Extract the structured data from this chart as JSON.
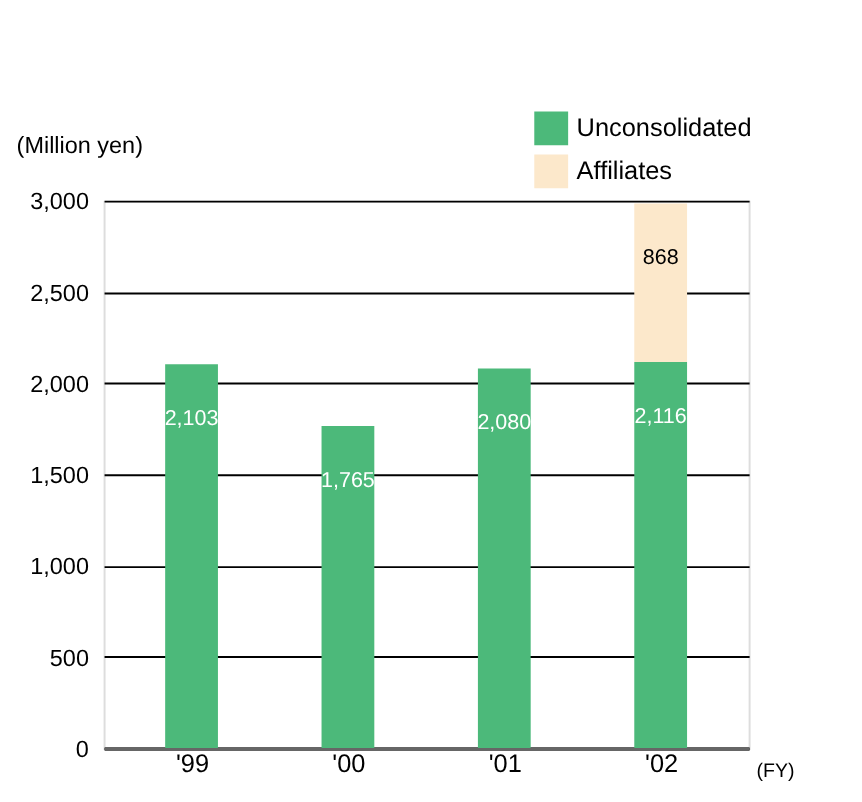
{
  "chart_data": {
    "type": "bar",
    "stacked": true,
    "categories": [
      "'99",
      "'00",
      "'01",
      "'02"
    ],
    "series": [
      {
        "name": "Unconsolidated",
        "color": "#4cb97a",
        "values": [
          2103,
          1765,
          2080,
          2116
        ],
        "value_labels": [
          "2,103",
          "1,765",
          "2,080",
          "2,116"
        ]
      },
      {
        "name": "Affiliates",
        "color": "#fce8cb",
        "values": [
          null,
          null,
          null,
          868
        ],
        "value_labels": [
          null,
          null,
          null,
          "868"
        ]
      }
    ],
    "ylabel": "(Million yen)",
    "xlabel": "(FY)",
    "ylim": [
      0,
      3000
    ],
    "yticks": [
      0,
      500,
      {
        "value": 1000,
        "label": "1,000"
      },
      {
        "value": 1500,
        "label": "1,500"
      },
      {
        "value": 2000,
        "label": "2,000"
      },
      {
        "value": 2500,
        "label": "2,500"
      },
      {
        "value": 3000,
        "label": "3,000"
      }
    ],
    "grid": "y",
    "legend": "top right"
  }
}
